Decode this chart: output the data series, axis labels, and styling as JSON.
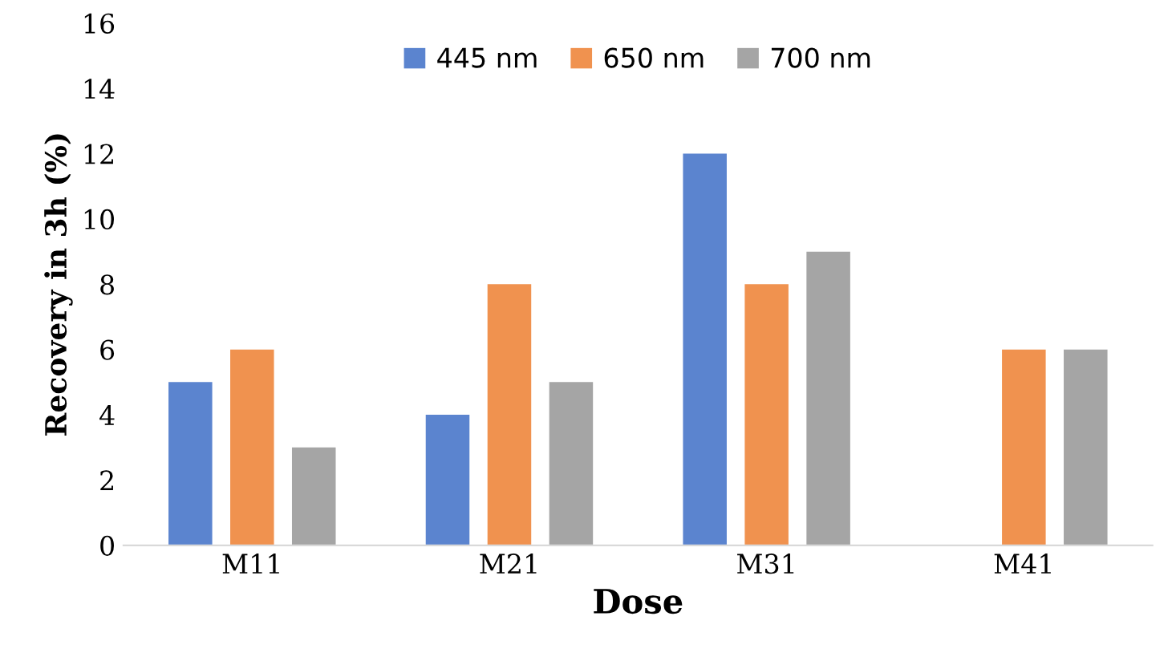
{
  "chart_data": {
    "type": "bar",
    "xlabel": "Dose",
    "ylabel": "Recovery in 3h (%)",
    "categories": [
      "M11",
      "M21",
      "M31",
      "M41"
    ],
    "series": [
      {
        "name": "445 nm",
        "color": "#5b84cf",
        "values": [
          5,
          4,
          12,
          0
        ]
      },
      {
        "name": "650 nm",
        "color": "#f0924f",
        "values": [
          6,
          8,
          8,
          6
        ]
      },
      {
        "name": "700 nm",
        "color": "#a5a5a5",
        "values": [
          3,
          5,
          9,
          6
        ]
      }
    ],
    "ylim": [
      0,
      16
    ],
    "yticks": [
      0,
      2,
      4,
      6,
      8,
      10,
      12,
      14,
      16
    ],
    "grid": false,
    "legend": "top"
  }
}
